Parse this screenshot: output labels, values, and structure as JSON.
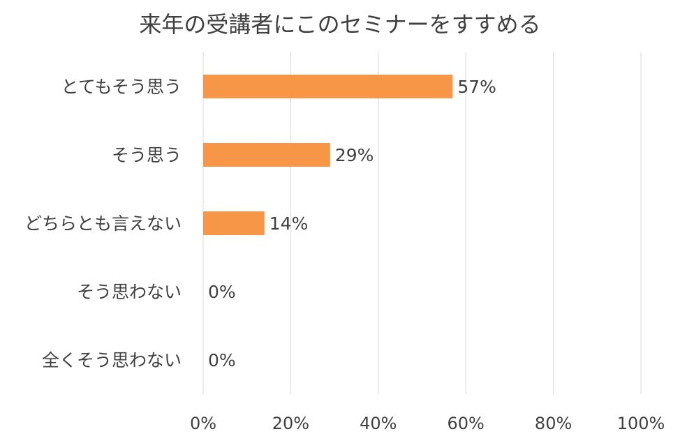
{
  "chart_data": {
    "type": "bar",
    "orientation": "horizontal",
    "title": "来年の受講者にこのセミナーをすすめる",
    "categories": [
      "とてもそう思う",
      "そう思う",
      "どちらとも言えない",
      "そう思わない",
      "全くそう思わない"
    ],
    "values": [
      57,
      29,
      14,
      0,
      0
    ],
    "data_labels": [
      "57%",
      "29%",
      "14%",
      "0%",
      "0%"
    ],
    "xlim": [
      0,
      100
    ],
    "x_ticks": [
      0,
      20,
      40,
      60,
      80,
      100
    ],
    "x_tick_labels": [
      "0%",
      "20%",
      "40%",
      "60%",
      "80%",
      "100%"
    ],
    "grid": true,
    "bar_color": "#f79646",
    "grid_color": "#d9d9d9",
    "text_color": "#404040"
  }
}
